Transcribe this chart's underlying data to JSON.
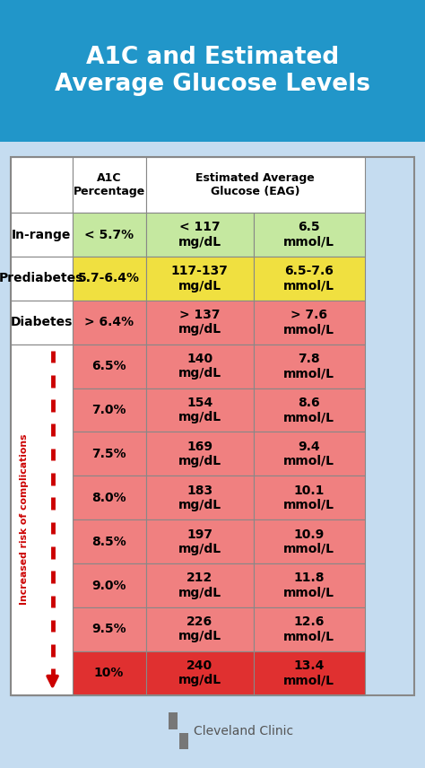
{
  "title": "A1C and Estimated\nAverage Glucose Levels",
  "title_bg": "#2196C9",
  "title_color": "#FFFFFF",
  "bg_color": "#C5DCF0",
  "col_headers": [
    "A1C\nPercentage",
    "Estimated Average\nGlucose (EAG)"
  ],
  "rows": [
    {
      "label": "In-range",
      "a1c": "< 5.7%",
      "mgdl": "< 117\nmg/dL",
      "mmol": "6.5\nmmol/L",
      "a1c_bg": "#C5E8A0",
      "data_bg": "#C5E8A0",
      "label_bg": "#FFFFFF",
      "is_risk": false
    },
    {
      "label": "Prediabetes",
      "a1c": "5.7-6.4%",
      "mgdl": "117-137\nmg/dL",
      "mmol": "6.5-7.6\nmmol/L",
      "a1c_bg": "#F0E040",
      "data_bg": "#F0E040",
      "label_bg": "#FFFFFF",
      "is_risk": false
    },
    {
      "label": "Diabetes",
      "a1c": "> 6.4%",
      "mgdl": "> 137\nmg/dL",
      "mmol": "> 7.6\nmmol/L",
      "a1c_bg": "#F08080",
      "data_bg": "#F08080",
      "label_bg": "#FFFFFF",
      "is_risk": false
    },
    {
      "label": "",
      "a1c": "6.5%",
      "mgdl": "140\nmg/dL",
      "mmol": "7.8\nmmol/L",
      "a1c_bg": "#F08080",
      "data_bg": "#F08080",
      "label_bg": "#FFFFFF",
      "is_risk": true
    },
    {
      "label": "",
      "a1c": "7.0%",
      "mgdl": "154\nmg/dL",
      "mmol": "8.6\nmmol/L",
      "a1c_bg": "#F08080",
      "data_bg": "#F08080",
      "label_bg": "#FFFFFF",
      "is_risk": true
    },
    {
      "label": "",
      "a1c": "7.5%",
      "mgdl": "169\nmg/dL",
      "mmol": "9.4\nmmol/L",
      "a1c_bg": "#F08080",
      "data_bg": "#F08080",
      "label_bg": "#FFFFFF",
      "is_risk": true
    },
    {
      "label": "",
      "a1c": "8.0%",
      "mgdl": "183\nmg/dL",
      "mmol": "10.1\nmmol/L",
      "a1c_bg": "#F08080",
      "data_bg": "#F08080",
      "label_bg": "#FFFFFF",
      "is_risk": true
    },
    {
      "label": "",
      "a1c": "8.5%",
      "mgdl": "197\nmg/dL",
      "mmol": "10.9\nmmol/L",
      "a1c_bg": "#F08080",
      "data_bg": "#F08080",
      "label_bg": "#FFFFFF",
      "is_risk": true
    },
    {
      "label": "",
      "a1c": "9.0%",
      "mgdl": "212\nmg/dL",
      "mmol": "11.8\nmmol/L",
      "a1c_bg": "#F08080",
      "data_bg": "#F08080",
      "label_bg": "#FFFFFF",
      "is_risk": true
    },
    {
      "label": "",
      "a1c": "9.5%",
      "mgdl": "226\nmg/dL",
      "mmol": "12.6\nmmol/L",
      "a1c_bg": "#F08080",
      "data_bg": "#F08080",
      "label_bg": "#FFFFFF",
      "is_risk": true
    },
    {
      "label": "",
      "a1c": "10%",
      "mgdl": "240\nmg/dL",
      "mmol": "13.4\nmmol/L",
      "a1c_bg": "#E03030",
      "data_bg": "#E03030",
      "label_bg": "#FFFFFF",
      "is_risk": true
    }
  ],
  "risk_label": "Increased risk of complications",
  "risk_color": "#CC0000",
  "clinic_label": "Cleveland Clinic",
  "border_color": "#888888"
}
